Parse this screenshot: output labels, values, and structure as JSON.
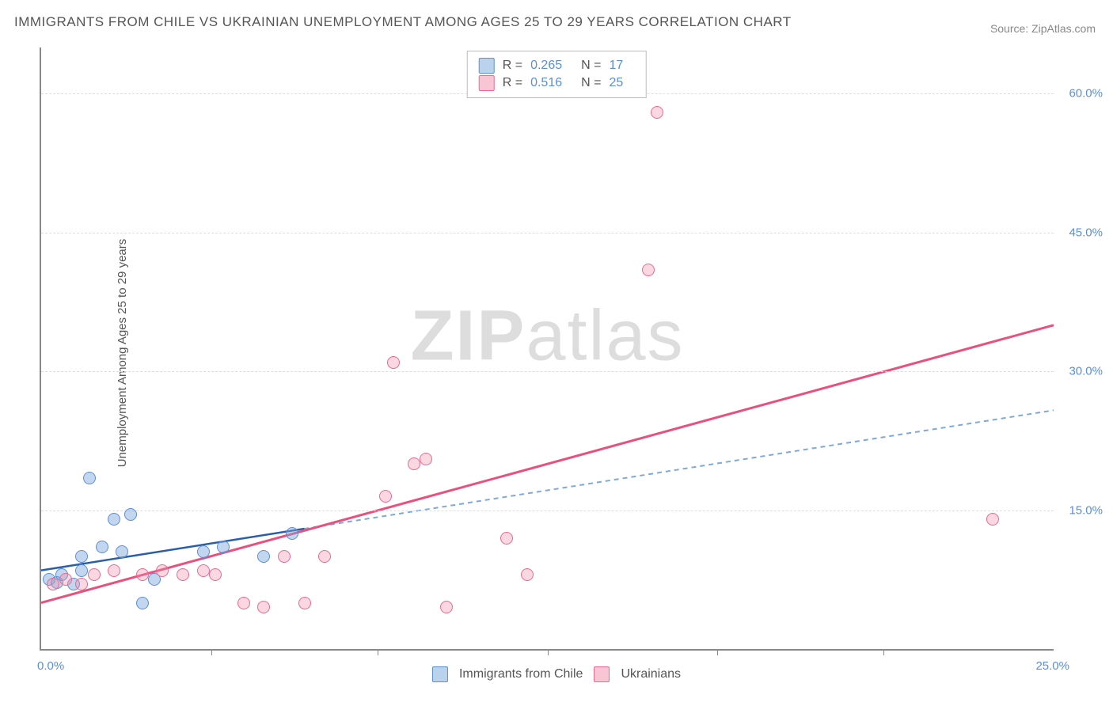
{
  "title": "IMMIGRANTS FROM CHILE VS UKRAINIAN UNEMPLOYMENT AMONG AGES 25 TO 29 YEARS CORRELATION CHART",
  "source": "Source: ZipAtlas.com",
  "ylabel": "Unemployment Among Ages 25 to 29 years",
  "watermark_bold": "ZIP",
  "watermark_rest": "atlas",
  "chart": {
    "type": "scatter",
    "xlim": [
      0,
      25
    ],
    "ylim": [
      0,
      65
    ],
    "x_ticks_labeled": [
      {
        "value": 0,
        "label": "0.0%"
      },
      {
        "value": 25,
        "label": "25.0%"
      }
    ],
    "x_tick_marks": [
      4.2,
      8.3,
      12.5,
      16.7,
      20.8
    ],
    "y_gridlines": [
      {
        "value": 15,
        "label": "15.0%"
      },
      {
        "value": 30,
        "label": "30.0%"
      },
      {
        "value": 45,
        "label": "45.0%"
      },
      {
        "value": 60,
        "label": "60.0%"
      }
    ],
    "background_color": "#ffffff",
    "grid_color": "#dddddd",
    "axis_color": "#888888",
    "series": [
      {
        "name": "Immigrants from Chile",
        "color_fill": "rgba(120,165,220,0.45)",
        "color_stroke": "#5b8fd6",
        "marker": "circle",
        "marker_size": 16,
        "R": "0.265",
        "N": "17",
        "trend": {
          "x1": 0,
          "y1": 8.5,
          "x2": 6.5,
          "y2": 13.0,
          "extrap_x2": 25,
          "extrap_y2": 25.8,
          "solid_color": "#2a5fa8",
          "dashed_color": "#7fa8db",
          "line_width": 2.5
        },
        "points": [
          {
            "x": 0.2,
            "y": 7.5
          },
          {
            "x": 0.4,
            "y": 7.2
          },
          {
            "x": 0.5,
            "y": 8.0
          },
          {
            "x": 0.8,
            "y": 7.0
          },
          {
            "x": 1.0,
            "y": 8.5
          },
          {
            "x": 1.0,
            "y": 10.0
          },
          {
            "x": 1.2,
            "y": 18.5
          },
          {
            "x": 1.5,
            "y": 11.0
          },
          {
            "x": 1.8,
            "y": 14.0
          },
          {
            "x": 2.0,
            "y": 10.5
          },
          {
            "x": 2.2,
            "y": 14.5
          },
          {
            "x": 2.5,
            "y": 5.0
          },
          {
            "x": 2.8,
            "y": 7.5
          },
          {
            "x": 4.0,
            "y": 10.5
          },
          {
            "x": 4.5,
            "y": 11.0
          },
          {
            "x": 5.5,
            "y": 10.0
          },
          {
            "x": 6.2,
            "y": 12.5
          }
        ]
      },
      {
        "name": "Ukrainians",
        "color_fill": "rgba(240,140,170,0.35)",
        "color_stroke": "#e86a92",
        "marker": "circle",
        "marker_size": 16,
        "R": "0.516",
        "N": "25",
        "trend": {
          "x1": 0,
          "y1": 5.0,
          "x2": 25,
          "y2": 35.0,
          "solid_color": "#e8517e",
          "line_width": 3
        },
        "points": [
          {
            "x": 0.3,
            "y": 7.0
          },
          {
            "x": 0.6,
            "y": 7.5
          },
          {
            "x": 1.0,
            "y": 7.0
          },
          {
            "x": 1.3,
            "y": 8.0
          },
          {
            "x": 1.8,
            "y": 8.5
          },
          {
            "x": 2.5,
            "y": 8.0
          },
          {
            "x": 3.0,
            "y": 8.5
          },
          {
            "x": 3.5,
            "y": 8.0
          },
          {
            "x": 4.0,
            "y": 8.5
          },
          {
            "x": 4.3,
            "y": 8.0
          },
          {
            "x": 5.0,
            "y": 5.0
          },
          {
            "x": 5.5,
            "y": 4.5
          },
          {
            "x": 6.0,
            "y": 10.0
          },
          {
            "x": 6.5,
            "y": 5.0
          },
          {
            "x": 7.0,
            "y": 10.0
          },
          {
            "x": 8.5,
            "y": 16.5
          },
          {
            "x": 8.7,
            "y": 31.0
          },
          {
            "x": 9.2,
            "y": 20.0
          },
          {
            "x": 9.5,
            "y": 20.5
          },
          {
            "x": 10.0,
            "y": 4.5
          },
          {
            "x": 11.5,
            "y": 12.0
          },
          {
            "x": 12.0,
            "y": 8.0
          },
          {
            "x": 15.0,
            "y": 41.0
          },
          {
            "x": 15.2,
            "y": 58.0
          },
          {
            "x": 23.5,
            "y": 14.0
          }
        ]
      }
    ]
  },
  "legend_bottom": [
    {
      "swatch": "blue",
      "label": "Immigrants from Chile"
    },
    {
      "swatch": "pink",
      "label": "Ukrainians"
    }
  ]
}
